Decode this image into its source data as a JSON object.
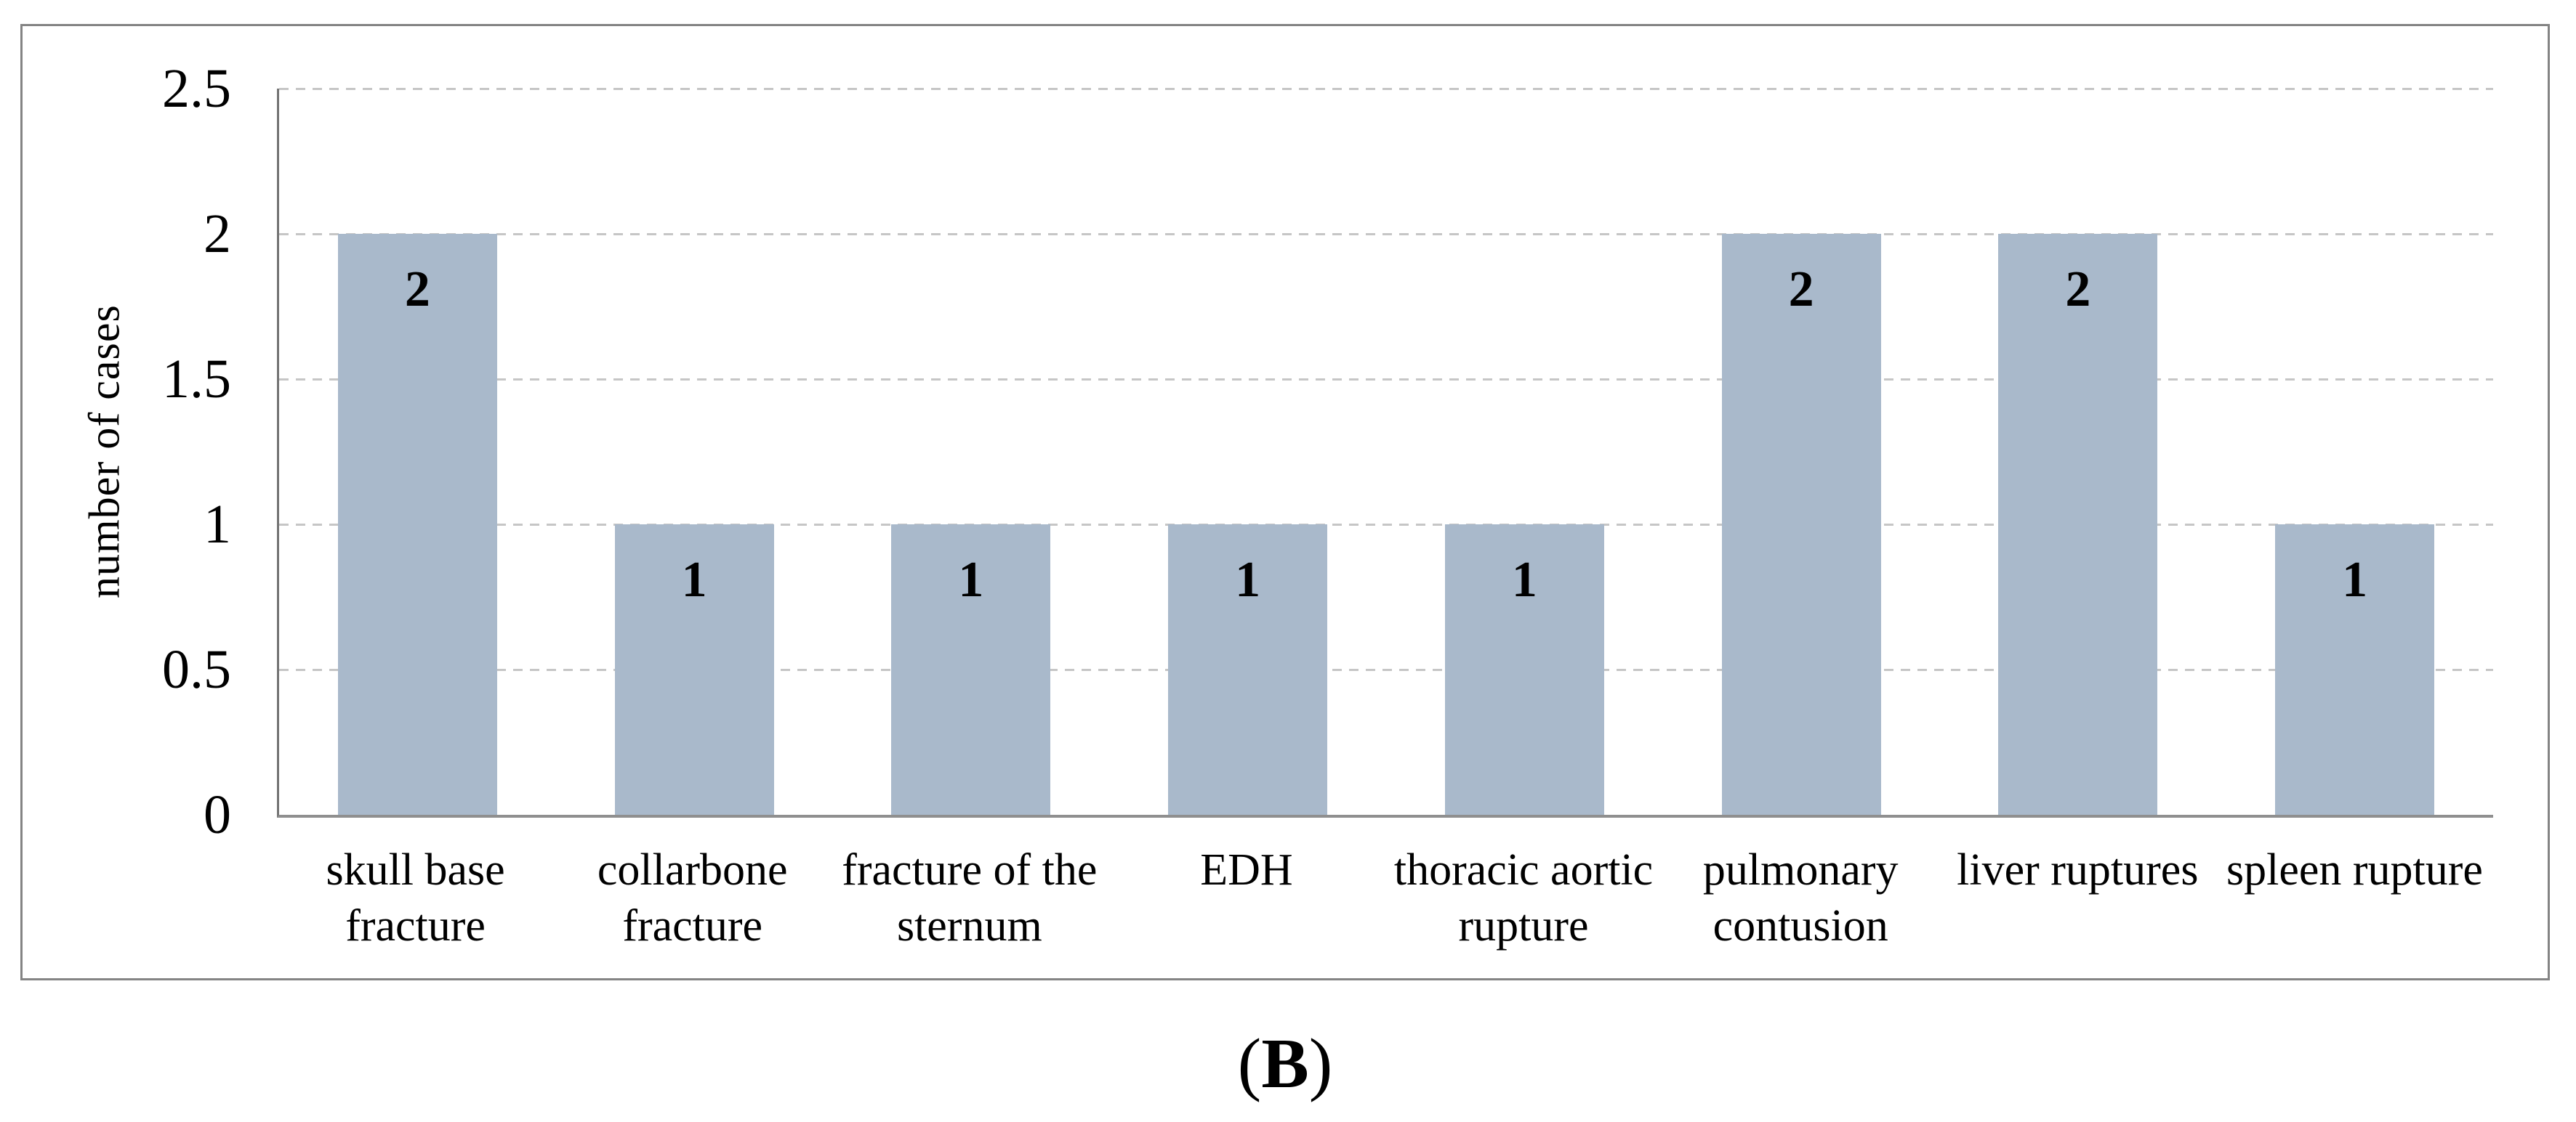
{
  "figure": {
    "background": "#ffffff",
    "border_color": "#848484",
    "panel_label": {
      "open": "(",
      "letter": "B",
      "close": ")"
    }
  },
  "chart_data": {
    "type": "bar",
    "title": "",
    "xlabel": "",
    "ylabel": "number of cases",
    "categories": [
      "skull base fracture",
      "collarbone fracture",
      "fracture of the sternum",
      "EDH",
      "thoracic aortic rupture",
      "pulmonary contusion",
      "liver ruptures",
      "spleen rupture"
    ],
    "categories_wrapped": [
      [
        "skull base",
        "fracture"
      ],
      [
        "collarbone",
        "fracture"
      ],
      [
        "fracture of the",
        "sternum"
      ],
      [
        "EDH"
      ],
      [
        "thoracic aortic",
        "rupture"
      ],
      [
        "pulmonary",
        "contusion"
      ],
      [
        "liver ruptures"
      ],
      [
        "spleen rupture"
      ]
    ],
    "values": [
      2,
      1,
      1,
      1,
      1,
      2,
      2,
      1
    ],
    "data_labels": [
      "2",
      "1",
      "1",
      "1",
      "1",
      "2",
      "2",
      "1"
    ],
    "ylim": [
      0,
      2.5
    ],
    "yticks": [
      0,
      0.5,
      1,
      1.5,
      2,
      2.5
    ],
    "ytick_labels": [
      "0",
      "0.5",
      "1",
      "1.5",
      "2",
      "2.5"
    ],
    "grid": "horizontal-dashed",
    "legend": "none",
    "bar_color": "#a9b9cb",
    "gridline_color": "#c6c6c6",
    "axis_color": "#747474",
    "label_color": "#000000"
  }
}
